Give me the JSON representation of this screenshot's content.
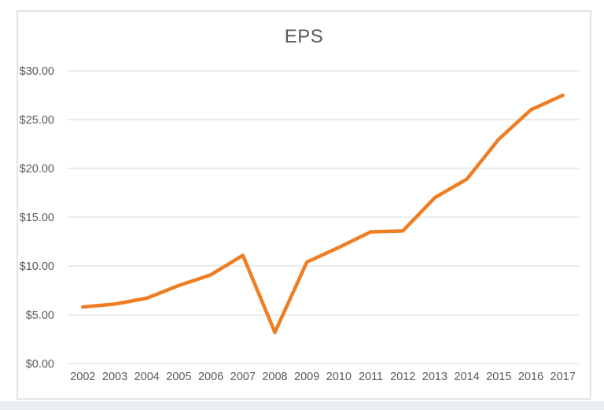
{
  "page": {
    "background_color": "#ffffff",
    "bottom_strip_color": "#e9edf2",
    "frame_border_color": "#e4e4e4"
  },
  "chart_data": {
    "type": "line",
    "title": "EPS",
    "categories": [
      "2002",
      "2003",
      "2004",
      "2005",
      "2006",
      "2007",
      "2008",
      "2009",
      "2010",
      "2011",
      "2012",
      "2013",
      "2014",
      "2015",
      "2016",
      "2017"
    ],
    "series": [
      {
        "name": "EPS",
        "values": [
          5.8,
          6.1,
          6.7,
          8.0,
          9.1,
          11.1,
          3.2,
          10.4,
          11.9,
          13.5,
          13.6,
          17.0,
          18.9,
          23.0,
          26.0,
          27.5
        ],
        "color": "#ef7d22"
      }
    ],
    "xlabel": "",
    "ylabel": "",
    "ylim": [
      0,
      30
    ],
    "ytick_step": 5,
    "ytick_labels": [
      "$0.00",
      "$5.00",
      "$10.00",
      "$15.00",
      "$20.00",
      "$25.00",
      "$30.00"
    ],
    "grid": "horizontal",
    "legend": "none",
    "text_color": "#595959",
    "gridline_color": "#d9d9d9",
    "line_width": 4.5
  }
}
